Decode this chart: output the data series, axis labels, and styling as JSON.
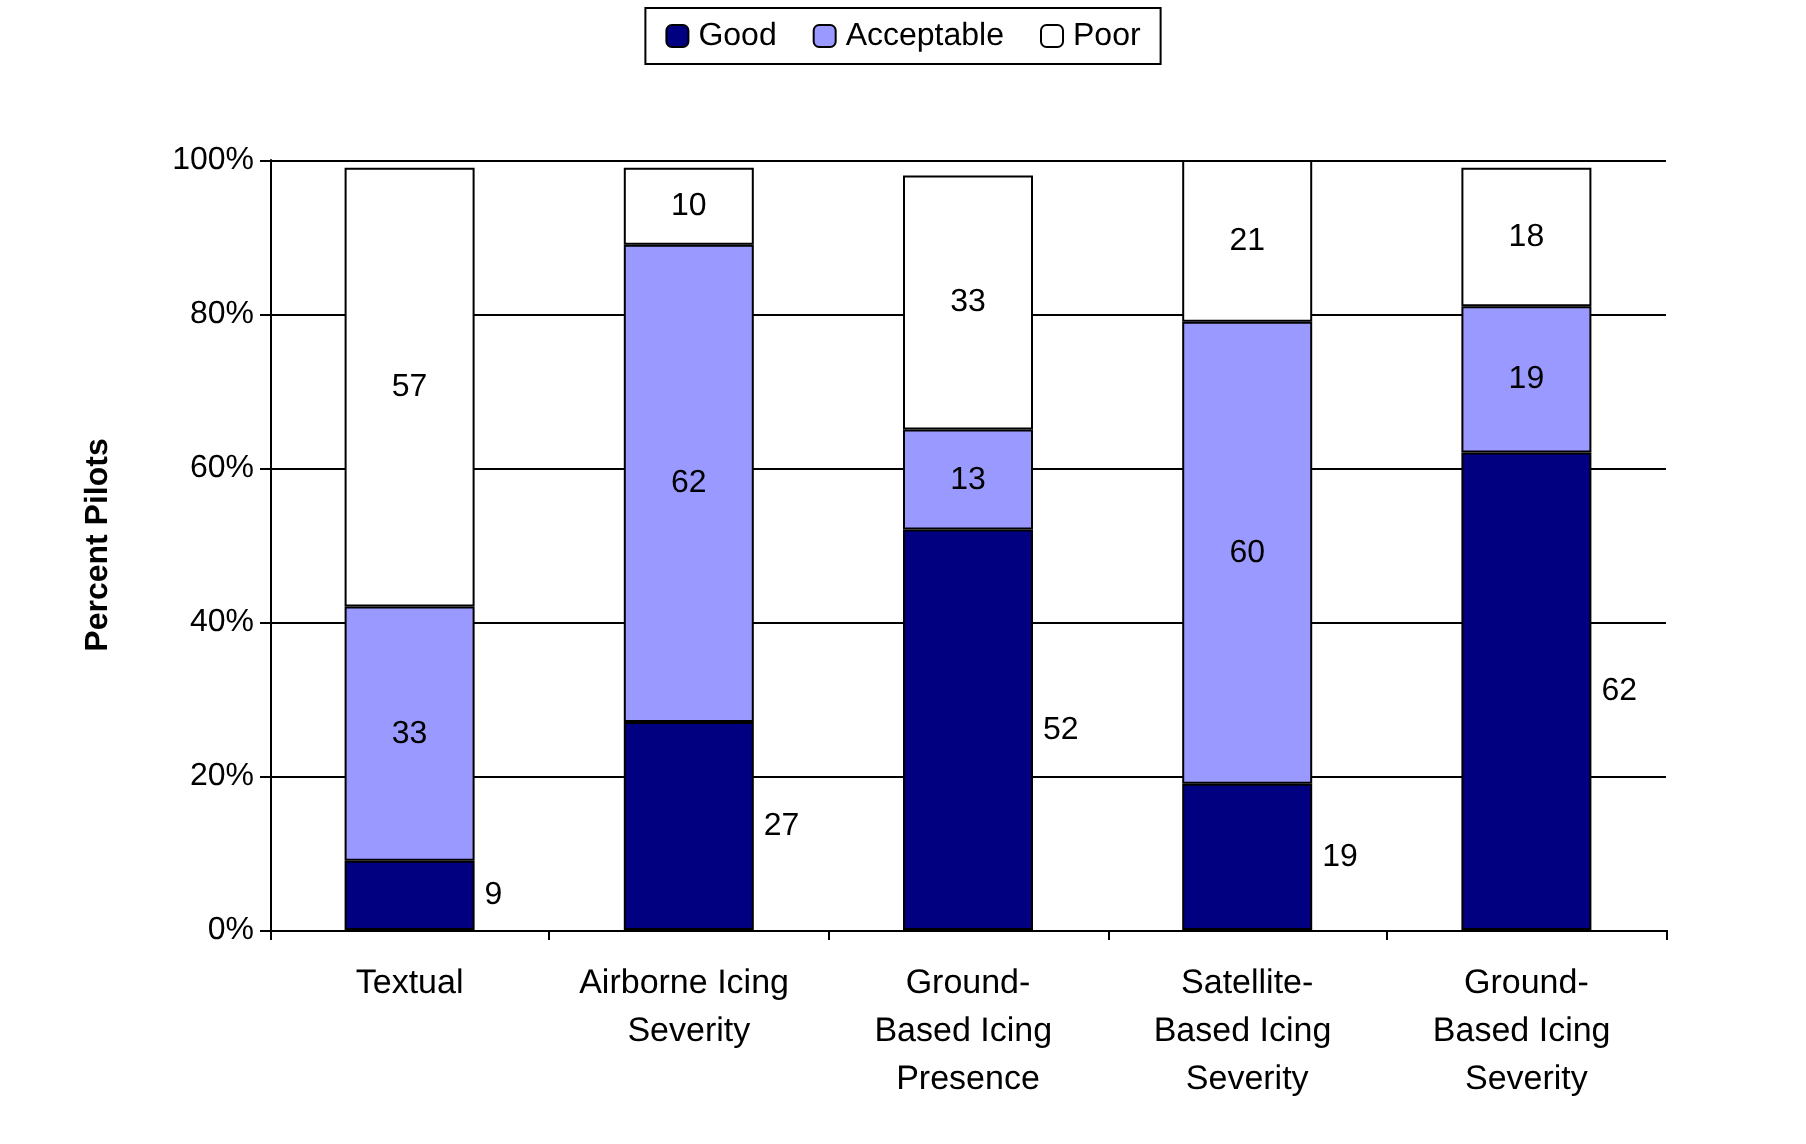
{
  "chart_data": {
    "type": "bar",
    "stacked": true,
    "ylabel": "Percent Pilots",
    "categories": [
      "Textual",
      "Airborne Icing Severity",
      "Ground-Based Icing Presence",
      "Satellite-Based Icing Severity",
      "Ground-Based Icing Severity"
    ],
    "series": [
      {
        "name": "Good",
        "color": "#000080",
        "values": [
          9,
          27,
          52,
          19,
          62
        ]
      },
      {
        "name": "Acceptable",
        "color": "#9999ff",
        "values": [
          33,
          62,
          13,
          60,
          19
        ]
      },
      {
        "name": "Poor",
        "color": "#ffffff",
        "values": [
          57,
          10,
          33,
          21,
          18
        ]
      }
    ],
    "ylim": [
      0,
      100
    ],
    "yticks": [
      {
        "value": 0,
        "label": "0%"
      },
      {
        "value": 20,
        "label": "20%"
      },
      {
        "value": 40,
        "label": "40%"
      },
      {
        "value": 60,
        "label": "60%"
      },
      {
        "value": 80,
        "label": "80%"
      },
      {
        "value": 100,
        "label": "100%"
      }
    ],
    "grid": "y",
    "legend": "top",
    "data_labels": true
  }
}
